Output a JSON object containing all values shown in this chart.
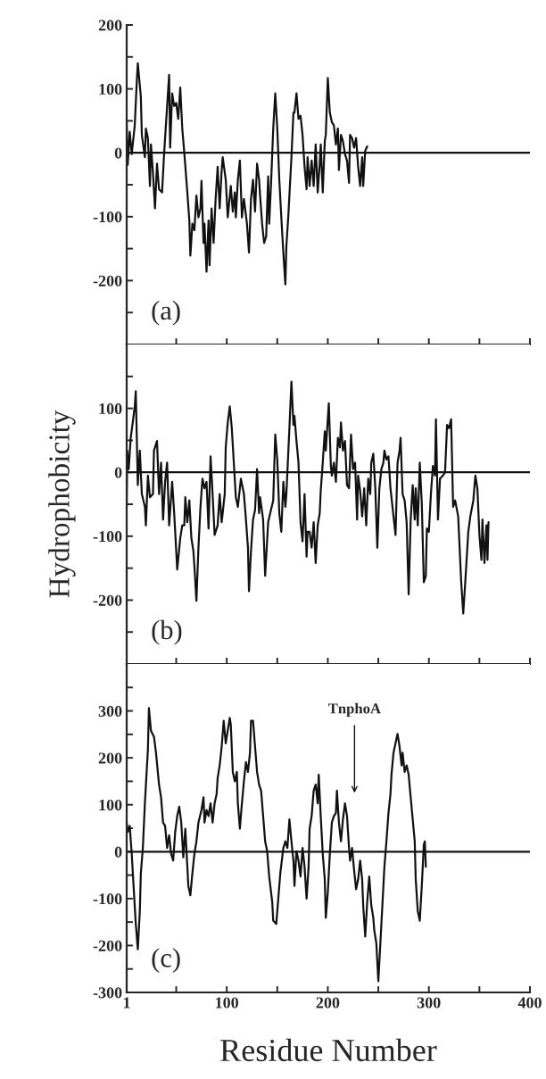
{
  "chart_data": [
    {
      "type": "line",
      "annotations": [
        "(a)"
      ],
      "xlim": [
        1,
        400
      ],
      "ylim": [
        -300,
        200
      ],
      "xticks": [
        1,
        {
          "value": 50,
          "label": null
        },
        100,
        {
          "value": 150,
          "label": null
        },
        200,
        {
          "value": 250,
          "label": null
        },
        300,
        {
          "value": 350,
          "label": null
        },
        400
      ],
      "yticks": [
        200,
        {
          "value": 150,
          "label": null
        },
        100,
        {
          "value": 50,
          "label": null
        },
        0,
        {
          "value": -50,
          "label": null
        },
        -100,
        {
          "value": -150,
          "label": null
        },
        -200,
        {
          "value": -250,
          "label": null
        }
      ],
      "tick_labels": "y",
      "grid": false,
      "ref_lines": [
        {
          "axis": "y",
          "value": 0,
          "color": "#111111"
        }
      ],
      "series": [
        {
          "color": "#111111",
          "x": [
            1,
            2,
            4,
            6,
            9,
            11,
            12,
            15,
            16,
            19,
            20,
            22,
            24,
            25,
            27,
            29,
            31,
            33,
            36,
            38,
            40,
            43,
            44,
            46,
            48,
            50,
            52,
            54,
            56,
            58,
            61,
            63,
            64,
            66,
            68,
            70,
            72,
            74,
            75,
            77,
            78,
            80,
            82,
            83,
            85,
            87,
            89,
            91,
            93,
            95,
            96,
            99,
            101,
            104,
            106,
            108,
            109,
            111,
            113,
            115,
            117,
            120,
            122,
            124,
            126,
            128,
            130,
            132,
            133,
            135,
            137,
            139,
            141,
            142,
            144,
            146,
            148,
            150,
            152,
            154,
            156,
            158,
            159,
            161,
            164,
            166,
            167,
            169,
            171,
            173,
            175,
            177,
            179,
            180,
            182,
            184,
            186,
            188,
            190,
            192,
            193,
            195,
            197,
            198,
            200,
            202,
            204,
            206,
            208,
            210,
            211,
            213,
            215,
            217,
            219,
            221,
            222,
            224,
            226,
            228,
            230,
            232,
            234,
            235,
            237,
            239
          ],
          "values": [
            48,
            -19,
            33,
            -2,
            43,
            112,
            140,
            88,
            28,
            -7,
            38,
            23,
            -52,
            13,
            -32,
            -87,
            -17,
            -57,
            -62,
            -2,
            48,
            122,
            8,
            93,
            73,
            78,
            53,
            102,
            38,
            0,
            -62,
            -106,
            -161,
            -111,
            -121,
            -67,
            -101,
            -87,
            -44,
            -141,
            -111,
            -186,
            -106,
            -176,
            -87,
            -141,
            -72,
            -22,
            -87,
            -27,
            -7,
            -42,
            -101,
            -52,
            -92,
            -62,
            -101,
            -42,
            -12,
            -101,
            -72,
            -111,
            -156,
            -72,
            -42,
            -92,
            -17,
            -42,
            -67,
            -111,
            -141,
            -131,
            -37,
            -111,
            -42,
            38,
            93,
            38,
            -42,
            -101,
            -156,
            -206,
            -146,
            -97,
            -7,
            63,
            63,
            93,
            53,
            58,
            28,
            -22,
            -57,
            -7,
            -52,
            -12,
            -52,
            13,
            -62,
            -17,
            13,
            -62,
            18,
            28,
            117,
            63,
            48,
            43,
            13,
            38,
            -27,
            28,
            18,
            -2,
            -12,
            -47,
            28,
            23,
            8,
            23,
            -22,
            -52,
            -7,
            -52,
            3,
            10
          ]
        }
      ]
    },
    {
      "type": "line",
      "annotations": [
        "(b)"
      ],
      "ylabel": "Hydrophobicity",
      "xlim": [
        1,
        400
      ],
      "ylim": [
        -300,
        200
      ],
      "xticks": [
        1,
        {
          "value": 50,
          "label": null
        },
        100,
        {
          "value": 150,
          "label": null
        },
        200,
        {
          "value": 250,
          "label": null
        },
        300,
        {
          "value": 350,
          "label": null
        },
        400
      ],
      "yticks": [
        {
          "value": 150,
          "label": null
        },
        100,
        {
          "value": 50,
          "label": null
        },
        0,
        {
          "value": -50,
          "label": null
        },
        -100,
        {
          "value": -150,
          "label": null
        },
        -200,
        {
          "value": -250,
          "label": null
        }
      ],
      "tick_labels": "y",
      "grid": false,
      "ref_lines": [
        {
          "axis": "y",
          "value": 0,
          "color": "#111111"
        }
      ],
      "series": [
        {
          "color": "#111111",
          "x": [
            1,
            1.5,
            3,
            5,
            7,
            9,
            10,
            11,
            12,
            14,
            16,
            19,
            20,
            22,
            24,
            27,
            28,
            31,
            33,
            35,
            37,
            39,
            41,
            43,
            46,
            48,
            51,
            54,
            56,
            58,
            59,
            61,
            63,
            65,
            67,
            68,
            70,
            72,
            74,
            76,
            78,
            80,
            82,
            84,
            86,
            88,
            91,
            93,
            95,
            98,
            99,
            101,
            103,
            105,
            107,
            109,
            111,
            113,
            114,
            117,
            119,
            121,
            122,
            124,
            126,
            128,
            130,
            132,
            133,
            136,
            138,
            141,
            143,
            146,
            148,
            150,
            152,
            154,
            156,
            158,
            159,
            162,
            164,
            166,
            167,
            169,
            171,
            173,
            175,
            177,
            179,
            180,
            182,
            184,
            186,
            188,
            190,
            192,
            193,
            195,
            197,
            198,
            201,
            203,
            204,
            206,
            208,
            210,
            212,
            213,
            215,
            217,
            219,
            221,
            223,
            225,
            227,
            229,
            230,
            232,
            234,
            236,
            238,
            240,
            242,
            243,
            245,
            247,
            249,
            251,
            253,
            255,
            256,
            258,
            260,
            262,
            264,
            267,
            269,
            271,
            272,
            274,
            276,
            278,
            280,
            282,
            284,
            286,
            287,
            289,
            291,
            293,
            295,
            297,
            298,
            300,
            302,
            304,
            306,
            307,
            309,
            311,
            314,
            316,
            318,
            320,
            322,
            324,
            326,
            329,
            332,
            334,
            336,
            339,
            341,
            344,
            346,
            348,
            350,
            352,
            353,
            355,
            357,
            358,
            359
          ],
          "values": [
            -54,
            34,
            5,
            54,
            78,
            103,
            127,
            54,
            -20,
            34,
            -34,
            -54,
            -83,
            -5,
            -39,
            -34,
            34,
            49,
            -34,
            15,
            -74,
            -15,
            15,
            -83,
            -15,
            -64,
            -152,
            -103,
            -83,
            -83,
            -39,
            -78,
            -44,
            -103,
            -123,
            -147,
            -201,
            -118,
            -54,
            -10,
            -25,
            -15,
            -88,
            25,
            -34,
            -98,
            -83,
            -34,
            -78,
            -34,
            39,
            78,
            103,
            69,
            15,
            -39,
            -54,
            -25,
            -10,
            -34,
            -74,
            -118,
            -186,
            -123,
            -74,
            -59,
            5,
            -64,
            -39,
            -74,
            -162,
            -78,
            -64,
            -44,
            59,
            20,
            -64,
            -93,
            -15,
            -54,
            -34,
            69,
            142,
            74,
            88,
            49,
            15,
            -78,
            -108,
            -34,
            -132,
            -93,
            -93,
            -118,
            -78,
            -142,
            -83,
            -64,
            -29,
            15,
            64,
            34,
            108,
            10,
            -5,
            15,
            -15,
            54,
            39,
            78,
            34,
            49,
            -20,
            -25,
            59,
            5,
            15,
            -74,
            -5,
            -29,
            -69,
            -25,
            -83,
            -10,
            -34,
            15,
            29,
            -25,
            -118,
            -25,
            5,
            15,
            34,
            20,
            25,
            -25,
            -54,
            -98,
            15,
            34,
            54,
            -34,
            -44,
            -78,
            -191,
            -74,
            -20,
            -74,
            -25,
            -83,
            15,
            -49,
            -172,
            -162,
            -88,
            -93,
            -34,
            10,
            -5,
            83,
            -74,
            -10,
            -5,
            0,
            74,
            69,
            83,
            -54,
            -44,
            -69,
            -172,
            -221,
            -172,
            -93,
            -69,
            -44,
            -5,
            -25,
            -98,
            -137,
            -74,
            -142,
            -83,
            -137,
            -78
          ]
        }
      ]
    },
    {
      "type": "line",
      "annotations": [
        "(c)",
        "TnphoA"
      ],
      "xlabel": "Residue Number",
      "xlim": [
        1,
        400
      ],
      "ylim": [
        -300,
        400
      ],
      "xticks": [
        1,
        {
          "value": 50,
          "label": null
        },
        100,
        {
          "value": 150,
          "label": null
        },
        200,
        {
          "value": 250,
          "label": null
        },
        300,
        {
          "value": 350,
          "label": null
        },
        400
      ],
      "yticks": [
        {
          "value": 350,
          "label": null
        },
        300,
        {
          "value": 250,
          "label": null
        },
        200,
        {
          "value": 150,
          "label": null
        },
        100,
        {
          "value": 50,
          "label": null
        },
        0,
        {
          "value": -50,
          "label": null
        },
        -100,
        {
          "value": -150,
          "label": null
        },
        -200,
        {
          "value": -250,
          "label": null
        },
        -300
      ],
      "grid": false,
      "ref_lines": [
        {
          "axis": "y",
          "value": 0,
          "color": "#111111"
        }
      ],
      "series": [
        {
          "color": "#111111",
          "x": [
            1,
            2,
            4,
            6,
            8,
            10,
            12,
            14,
            15,
            17,
            19,
            22,
            23,
            25,
            28,
            30,
            33,
            35,
            37,
            39,
            41,
            43,
            45,
            47,
            49,
            51,
            53,
            55,
            57,
            59,
            61,
            62,
            64,
            66,
            68,
            70,
            72,
            75,
            77,
            78,
            80,
            82,
            84,
            86,
            88,
            90,
            91,
            93,
            95,
            97,
            99,
            101,
            103,
            104,
            106,
            108,
            110,
            111,
            113,
            115,
            117,
            119,
            121,
            123,
            124,
            126,
            128,
            130,
            132,
            134,
            136,
            138,
            140,
            142,
            145,
            146,
            149,
            151,
            153,
            156,
            158,
            160,
            162,
            164,
            166,
            167,
            169,
            171,
            173,
            175,
            177,
            179,
            181,
            182,
            184,
            186,
            188,
            190,
            191,
            193,
            195,
            197,
            198,
            200,
            202,
            204,
            206,
            208,
            209,
            211,
            213,
            215,
            217,
            219,
            221,
            222,
            224,
            226,
            228,
            230,
            232,
            234,
            235,
            237,
            239,
            241,
            243,
            245,
            246,
            248,
            250,
            252,
            254,
            256,
            258,
            260,
            262,
            263,
            265,
            267,
            269,
            271,
            273,
            274,
            276,
            278,
            280,
            282,
            284,
            286,
            287,
            289,
            291,
            293,
            295,
            296,
            297
          ],
          "values": [
            62,
            42,
            55,
            -5,
            -80,
            -154,
            -208,
            -127,
            -46,
            8,
            103,
            218,
            306,
            258,
            245,
            211,
            143,
            116,
            62,
            55,
            8,
            35,
            -5,
            -19,
            42,
            76,
            96,
            62,
            -12,
            49,
            -32,
            -73,
            -93,
            -46,
            -5,
            22,
            62,
            89,
            116,
            62,
            89,
            76,
            103,
            62,
            103,
            123,
            157,
            184,
            224,
            279,
            231,
            258,
            285,
            271,
            170,
            150,
            170,
            103,
            49,
            103,
            150,
            191,
            170,
            211,
            279,
            279,
            224,
            170,
            143,
            130,
            76,
            22,
            1,
            -53,
            -107,
            -147,
            -154,
            -100,
            -46,
            8,
            22,
            8,
            69,
            22,
            -19,
            -73,
            1,
            -19,
            -53,
            8,
            -32,
            -100,
            -32,
            49,
            76,
            130,
            143,
            103,
            164,
            76,
            -5,
            -59,
            -141,
            -87,
            -5,
            62,
            76,
            82,
            130,
            62,
            22,
            69,
            103,
            76,
            8,
            -19,
            8,
            -39,
            -80,
            -59,
            -19,
            -59,
            -114,
            -181,
            -107,
            -53,
            -114,
            -141,
            -168,
            -195,
            -276,
            -195,
            -114,
            -32,
            22,
            82,
            123,
            164,
            211,
            231,
            251,
            224,
            184,
            211,
            170,
            184,
            164,
            116,
            69,
            22,
            -59,
            -127,
            -147,
            -73,
            15,
            22,
            -32
          ]
        }
      ]
    }
  ]
}
